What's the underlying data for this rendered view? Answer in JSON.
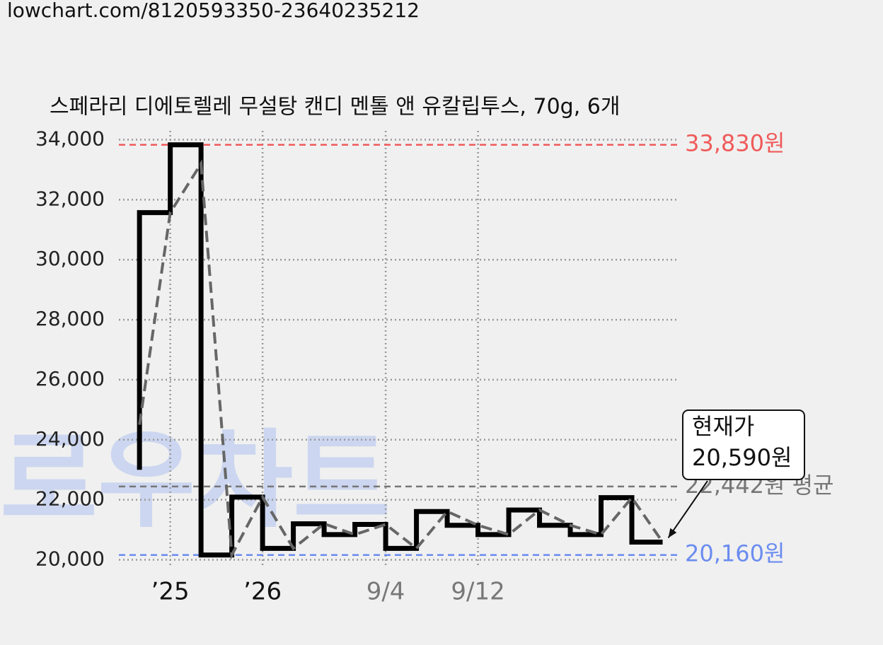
{
  "url": "lowchart.com/8120593350-23640235212",
  "watermark": "로우차트",
  "chart_data": {
    "type": "step",
    "title": "스페라리 디에토렐레 무설탕 캔디 멘톨 앤 유칼립투스, 70g, 6개",
    "xlim": [
      -0.67,
      17.54
    ],
    "xticks": [
      {
        "value": 1,
        "label": "’25"
      },
      {
        "value": 4,
        "label": "’26"
      },
      {
        "value": 8,
        "label": "9/4"
      },
      {
        "value": 11,
        "label": "9/12"
      }
    ],
    "ylim": [
      19800,
      34200
    ],
    "yticks": [
      {
        "value": 20000,
        "label": "20,000"
      },
      {
        "value": 22000,
        "label": "22,000"
      },
      {
        "value": 24000,
        "label": "24,000"
      },
      {
        "value": 26000,
        "label": "26,000"
      },
      {
        "value": 28000,
        "label": "28,000"
      },
      {
        "value": 30000,
        "label": "30,000"
      },
      {
        "value": 32000,
        "label": "32,000"
      },
      {
        "value": 34000,
        "label": "34,000"
      }
    ],
    "grid": true,
    "series": [
      {
        "style": "step",
        "color": "#000000",
        "x": [
          0,
          0,
          1,
          2,
          3,
          4,
          5,
          6,
          7,
          8,
          9,
          10,
          11,
          12,
          13,
          14,
          15,
          16,
          17
        ],
        "values": [
          23000,
          31570,
          33830,
          20160,
          22090,
          20380,
          21200,
          20840,
          21180,
          20380,
          21610,
          21150,
          20840,
          21660,
          21150,
          20840,
          22070,
          20590,
          20590
        ]
      },
      {
        "style": "dashed",
        "color": "#666666",
        "x": [
          0,
          1,
          2,
          3,
          4,
          5,
          6,
          7,
          8,
          9,
          10,
          11,
          12,
          13,
          14,
          15,
          16,
          17
        ],
        "values": [
          24500,
          31570,
          33200,
          20160,
          22090,
          20380,
          21200,
          20840,
          21180,
          20380,
          21610,
          21150,
          20840,
          21660,
          21150,
          20840,
          22070,
          20590
        ]
      }
    ],
    "reference_lines": [
      {
        "value": 33830,
        "label": "33,830원",
        "color": "#f05a5a"
      },
      {
        "value": 20160,
        "label": "20,160원",
        "color": "#6a8cf0"
      },
      {
        "value": 22442,
        "label": "22,442원 평균",
        "color": "#777777"
      }
    ],
    "callout": {
      "lines": [
        "현재가",
        "20,590원"
      ],
      "x": 17,
      "value": 20590
    }
  }
}
